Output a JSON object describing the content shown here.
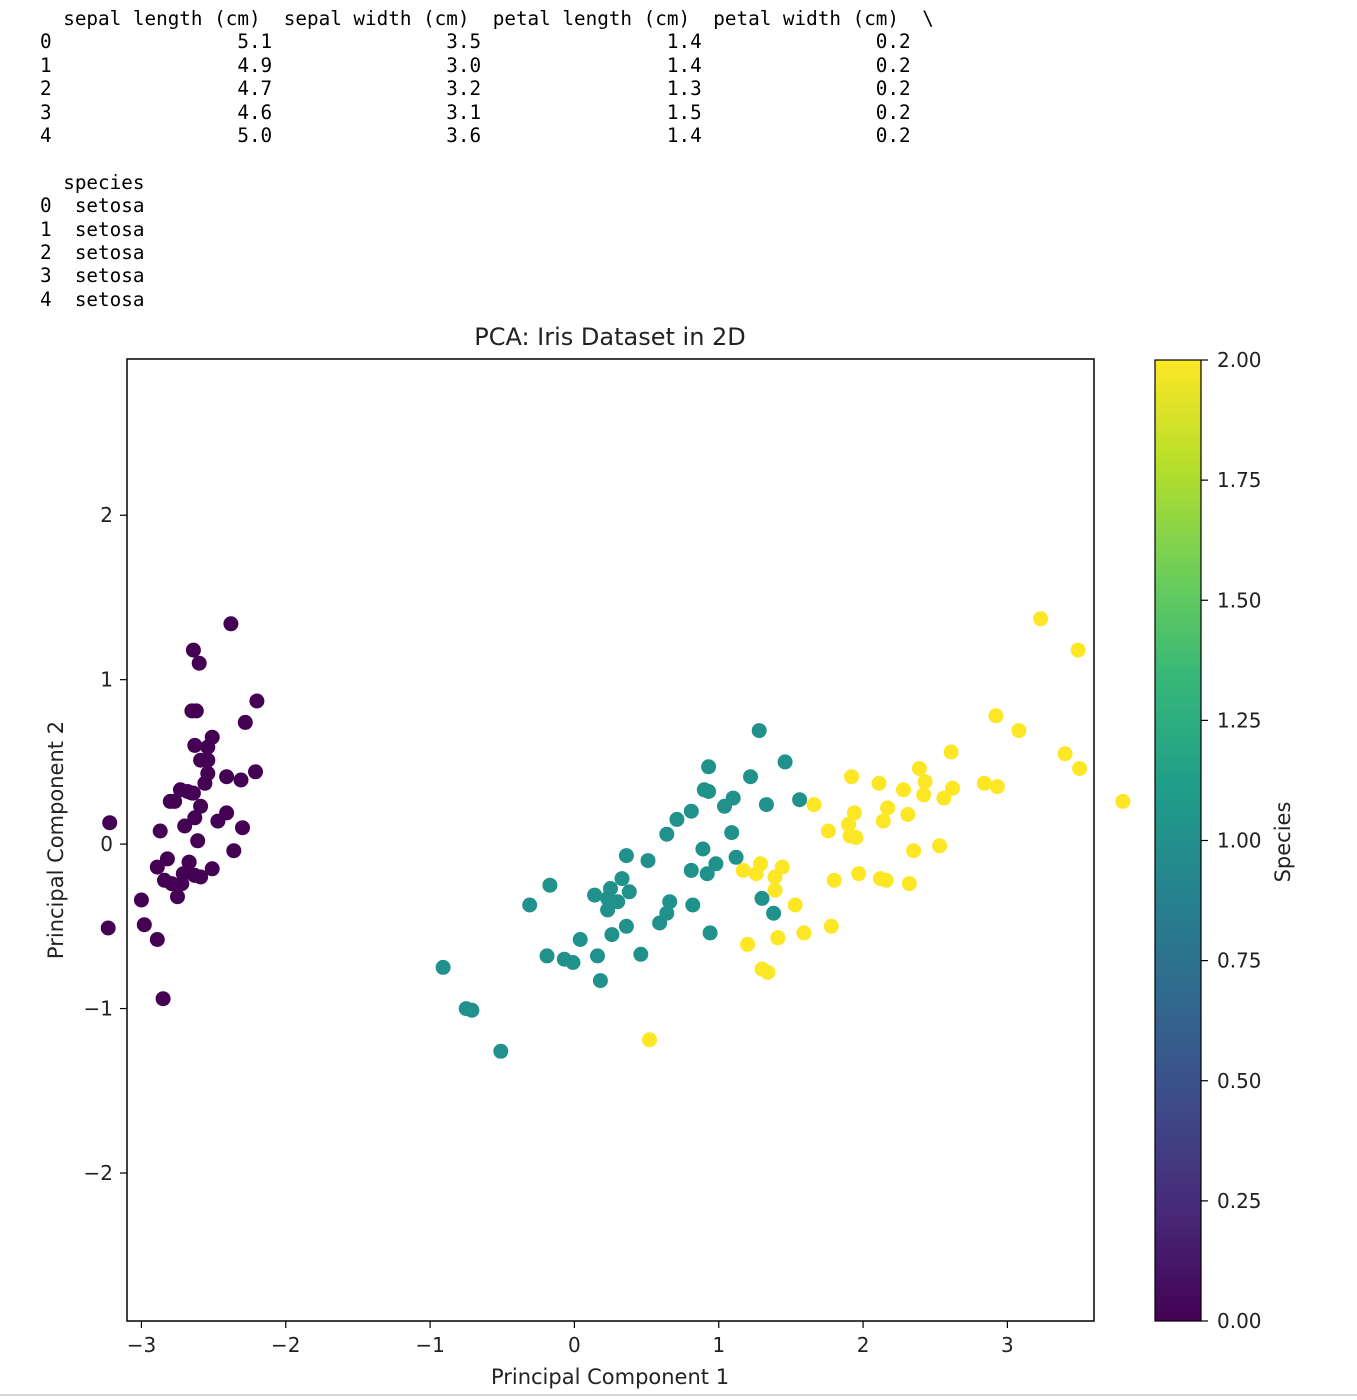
{
  "output_text": "  sepal length (cm)  sepal width (cm)  petal length (cm)  petal width (cm)  \\\n0                5.1               3.5                1.4               0.2   \n1                4.9               3.0                1.4               0.2   \n2                4.7               3.2                1.3               0.2   \n3                4.6               3.1                1.5               0.2   \n4                5.0               3.6                1.4               0.2   \n\n  species  \n0  setosa  \n1  setosa  \n2  setosa  \n3  setosa  \n4  setosa  ",
  "chart_data": {
    "type": "scatter",
    "title": "PCA: Iris Dataset in 2D",
    "xlabel": "Principal Component 1",
    "ylabel": "Principal Component 2",
    "xlim": [
      -3.1,
      3.6
    ],
    "ylim": [
      -2.9,
      2.95
    ],
    "xticks": [
      -3,
      -2,
      -1,
      0,
      1,
      2,
      3
    ],
    "xtick_labels": [
      "−3",
      "−2",
      "−1",
      "0",
      "1",
      "2",
      "3"
    ],
    "yticks": [
      -2,
      -1,
      0,
      1,
      2
    ],
    "ytick_labels": [
      "−2",
      "−1",
      "0",
      "1",
      "2"
    ],
    "grid": false,
    "colormap": "viridis",
    "colors": [
      "#440154",
      "#21918c",
      "#fde725"
    ],
    "colorbar": {
      "label": "Species",
      "min": 0.0,
      "max": 2.0,
      "ticks": [
        0.0,
        0.25,
        0.5,
        0.75,
        1.0,
        1.25,
        1.5,
        1.75,
        2.0
      ],
      "tick_labels": [
        "0.00",
        "0.25",
        "0.50",
        "0.75",
        "1.00",
        "1.25",
        "1.50",
        "1.75",
        "2.00"
      ],
      "stops": [
        "#440154",
        "#482878",
        "#3e4a89",
        "#31688e",
        "#26828e",
        "#1f9e89",
        "#35b779",
        "#6ece58",
        "#b5de2b",
        "#fde725"
      ]
    },
    "series": [
      {
        "class_value": 0,
        "color": "#440154",
        "points": [
          [
            -2.68,
            0.32
          ],
          [
            -2.71,
            -0.18
          ],
          [
            -2.89,
            -0.14
          ],
          [
            -2.75,
            -0.32
          ],
          [
            -2.73,
            0.33
          ],
          [
            -2.28,
            0.74
          ],
          [
            -2.82,
            -0.09
          ],
          [
            -2.63,
            0.16
          ],
          [
            -2.89,
            -0.58
          ],
          [
            -2.67,
            -0.11
          ],
          [
            -2.51,
            0.65
          ],
          [
            -2.61,
            0.02
          ],
          [
            -2.79,
            -0.24
          ],
          [
            -3.23,
            -0.51
          ],
          [
            -2.64,
            1.18
          ],
          [
            -2.38,
            1.34
          ],
          [
            -2.62,
            0.81
          ],
          [
            -2.65,
            0.31
          ],
          [
            -2.2,
            0.87
          ],
          [
            -2.59,
            0.51
          ],
          [
            -2.31,
            0.39
          ],
          [
            -2.54,
            0.43
          ],
          [
            -3.22,
            0.13
          ],
          [
            -2.3,
            0.1
          ],
          [
            -2.36,
            -0.04
          ],
          [
            -2.51,
            -0.15
          ],
          [
            -2.47,
            0.14
          ],
          [
            -2.56,
            0.37
          ],
          [
            -2.64,
            0.31
          ],
          [
            -2.63,
            -0.19
          ],
          [
            -2.59,
            -0.2
          ],
          [
            -2.41,
            0.41
          ],
          [
            -2.65,
            0.81
          ],
          [
            -2.6,
            1.1
          ],
          [
            -2.67,
            -0.11
          ],
          [
            -2.87,
            0.08
          ],
          [
            -2.63,
            0.6
          ],
          [
            -2.8,
            0.26
          ],
          [
            -2.98,
            -0.49
          ],
          [
            -2.59,
            0.23
          ],
          [
            -2.77,
            0.26
          ],
          [
            -2.85,
            -0.94
          ],
          [
            -3.0,
            -0.34
          ],
          [
            -2.41,
            0.19
          ],
          [
            -2.21,
            0.44
          ],
          [
            -2.72,
            -0.24
          ],
          [
            -2.54,
            0.51
          ],
          [
            -2.84,
            -0.22
          ],
          [
            -2.54,
            0.59
          ],
          [
            -2.7,
            0.11
          ]
        ]
      },
      {
        "class_value": 1,
        "color": "#21918c",
        "points": [
          [
            1.28,
            0.69
          ],
          [
            0.93,
            0.32
          ],
          [
            1.46,
            0.5
          ],
          [
            0.18,
            -0.83
          ],
          [
            1.09,
            0.07
          ],
          [
            0.64,
            -0.42
          ],
          [
            1.1,
            0.28
          ],
          [
            -0.75,
            -1.0
          ],
          [
            1.04,
            0.23
          ],
          [
            -0.01,
            -0.72
          ],
          [
            -0.51,
            -1.26
          ],
          [
            0.51,
            -0.1
          ],
          [
            0.26,
            -0.55
          ],
          [
            0.98,
            -0.12
          ],
          [
            -0.17,
            -0.25
          ],
          [
            0.93,
            0.47
          ],
          [
            0.66,
            -0.35
          ],
          [
            0.23,
            -0.33
          ],
          [
            0.94,
            -0.54
          ],
          [
            0.04,
            -0.58
          ],
          [
            1.12,
            -0.08
          ],
          [
            0.36,
            -0.07
          ],
          [
            1.3,
            -0.33
          ],
          [
            0.92,
            -0.18
          ],
          [
            0.71,
            0.15
          ],
          [
            0.9,
            0.33
          ],
          [
            1.33,
            0.24
          ],
          [
            1.56,
            0.27
          ],
          [
            0.81,
            -0.16
          ],
          [
            -0.31,
            -0.37
          ],
          [
            -0.07,
            -0.7
          ],
          [
            -0.19,
            -0.68
          ],
          [
            0.14,
            -0.31
          ],
          [
            1.38,
            -0.42
          ],
          [
            0.59,
            -0.48
          ],
          [
            0.81,
            0.2
          ],
          [
            1.22,
            0.41
          ],
          [
            0.82,
            -0.37
          ],
          [
            0.25,
            -0.27
          ],
          [
            0.16,
            -0.68
          ],
          [
            0.46,
            -0.67
          ],
          [
            0.89,
            -0.03
          ],
          [
            0.23,
            -0.4
          ],
          [
            -0.71,
            -1.01
          ],
          [
            0.36,
            -0.5
          ],
          [
            0.33,
            -0.21
          ],
          [
            0.38,
            -0.29
          ],
          [
            0.64,
            0.06
          ],
          [
            -0.91,
            -0.75
          ],
          [
            0.3,
            -0.35
          ]
        ]
      },
      {
        "class_value": 2,
        "color": "#fde725",
        "points": [
          [
            2.53,
            -0.01
          ],
          [
            1.41,
            -0.57
          ],
          [
            2.62,
            0.34
          ],
          [
            1.97,
            -0.18
          ],
          [
            2.35,
            -0.04
          ],
          [
            3.4,
            0.55
          ],
          [
            0.52,
            -1.19
          ],
          [
            2.93,
            0.35
          ],
          [
            2.32,
            -0.24
          ],
          [
            2.92,
            0.78
          ],
          [
            1.66,
            0.24
          ],
          [
            1.8,
            -0.22
          ],
          [
            2.17,
            0.22
          ],
          [
            1.34,
            -0.78
          ],
          [
            1.59,
            -0.54
          ],
          [
            1.9,
            0.12
          ],
          [
            1.95,
            0.04
          ],
          [
            3.49,
            1.18
          ],
          [
            3.8,
            0.26
          ],
          [
            1.3,
            -0.76
          ],
          [
            2.43,
            0.38
          ],
          [
            1.2,
            -0.61
          ],
          [
            3.5,
            0.46
          ],
          [
            1.39,
            -0.2
          ],
          [
            2.28,
            0.33
          ],
          [
            2.61,
            0.56
          ],
          [
            1.26,
            -0.18
          ],
          [
            1.29,
            -0.12
          ],
          [
            2.12,
            -0.21
          ],
          [
            2.39,
            0.46
          ],
          [
            2.84,
            0.37
          ],
          [
            3.23,
            1.37
          ],
          [
            2.16,
            -0.22
          ],
          [
            1.44,
            -0.14
          ],
          [
            1.78,
            -0.5
          ],
          [
            3.08,
            0.69
          ],
          [
            2.14,
            0.14
          ],
          [
            1.91,
            0.05
          ],
          [
            1.17,
            -0.16
          ],
          [
            2.11,
            0.37
          ],
          [
            2.31,
            0.18
          ],
          [
            1.92,
            0.41
          ],
          [
            1.41,
            -0.57
          ],
          [
            2.56,
            0.28
          ],
          [
            2.42,
            0.3
          ],
          [
            1.94,
            0.19
          ],
          [
            1.53,
            -0.37
          ],
          [
            1.76,
            0.08
          ],
          [
            1.9,
            0.12
          ],
          [
            1.39,
            -0.28
          ]
        ]
      }
    ]
  }
}
